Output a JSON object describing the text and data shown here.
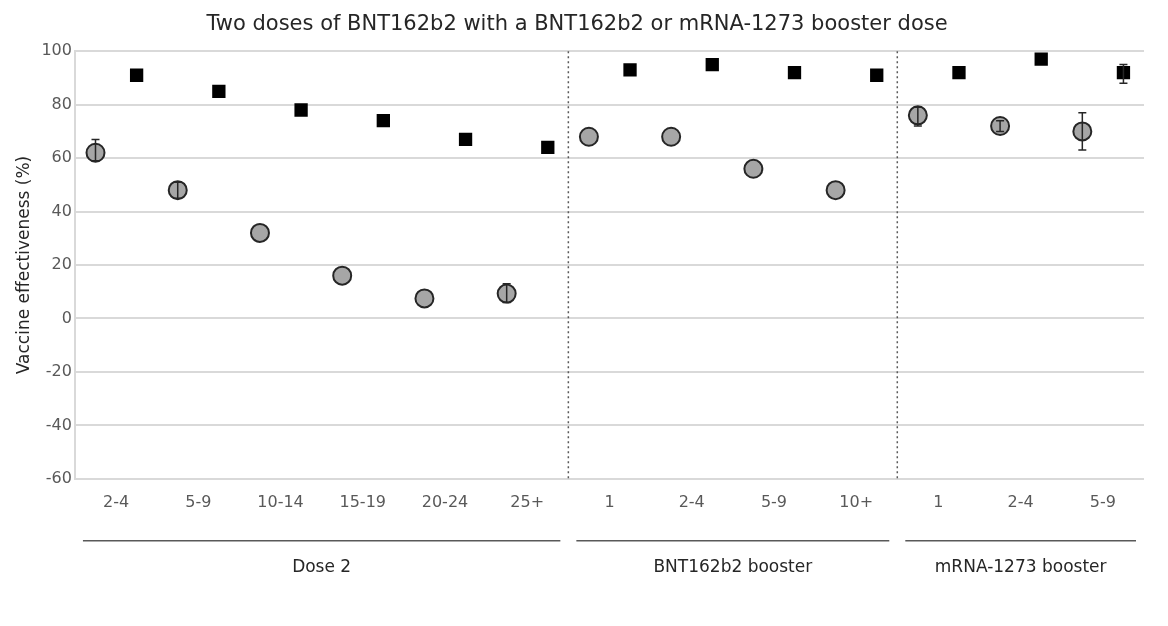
{
  "chart_data": {
    "type": "scatter",
    "title": "Two doses of BNT162b2 with a BNT162b2 or mRNA-1273 booster dose",
    "ylabel": "Vaccine effectiveness (%)",
    "categories": [
      "2-4",
      "5-9",
      "10-14",
      "15-19",
      "20-24",
      "25+",
      "1",
      "2-4",
      "5-9",
      "10+",
      "1",
      "2-4",
      "5-9"
    ],
    "series": [
      {
        "color": "#a6a6a6",
        "marker": "circle",
        "values": [
          62,
          48,
          32,
          16,
          7.5,
          9.3,
          68,
          68,
          56,
          48,
          76,
          72,
          70
        ],
        "errors": [
          [
            59,
            67
          ],
          [
            45,
            51
          ],
          null,
          null,
          null,
          [
            6,
            13
          ],
          null,
          null,
          null,
          null,
          [
            72,
            79
          ],
          [
            70,
            74
          ],
          [
            63,
            77
          ]
        ]
      },
      {
        "color": "#000000",
        "marker": "square",
        "values": [
          91,
          85,
          78,
          74,
          67,
          64,
          93,
          95,
          92,
          91,
          92,
          97,
          92
        ],
        "errors": [
          null,
          null,
          null,
          null,
          null,
          null,
          null,
          null,
          null,
          null,
          null,
          null,
          [
            88,
            95
          ]
        ]
      }
    ],
    "ylim": [
      -60,
      100
    ],
    "yticks": [
      -60,
      -40,
      -20,
      0,
      20,
      40,
      60,
      80,
      100
    ],
    "grid": "y",
    "legend": false,
    "annotations": [
      "Dose 2",
      "BNT162b2 booster",
      "mRNA-1273 booster"
    ]
  }
}
